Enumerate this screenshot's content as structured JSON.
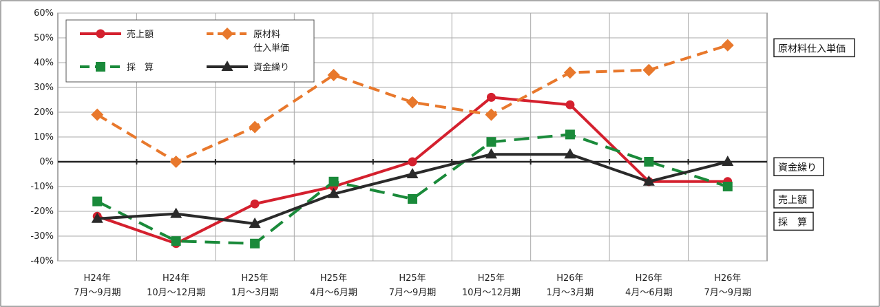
{
  "chart_data": {
    "type": "line",
    "categories": [
      [
        "H24年",
        "7月～9月期"
      ],
      [
        "H24年",
        "10月～12月期"
      ],
      [
        "H25年",
        "1月～3月期"
      ],
      [
        "H25年",
        "4月～6月期"
      ],
      [
        "H25年",
        "7月～9月期"
      ],
      [
        "H25年",
        "10月～12月期"
      ],
      [
        "H26年",
        "1月～3月期"
      ],
      [
        "H26年",
        "4月～6月期"
      ],
      [
        "H26年",
        "7月～9月期"
      ]
    ],
    "ylim": [
      -40,
      60
    ],
    "yticks": [
      60,
      50,
      40,
      30,
      20,
      10,
      0,
      -10,
      -20,
      -30,
      -40
    ],
    "ytick_suffix": "%",
    "grid": true,
    "series": [
      {
        "name": "売上額",
        "color": "#d4202e",
        "dash": "solid",
        "marker": "circle",
        "values": [
          -22,
          -33,
          -17,
          -10,
          0,
          26,
          23,
          -8,
          -8
        ]
      },
      {
        "name": "原材料\n仕入単価",
        "color": "#e8782c",
        "dash": "dashed",
        "marker": "diamond",
        "values": [
          19,
          0,
          14,
          35,
          24,
          19,
          36,
          37,
          47
        ]
      },
      {
        "name": "採　算",
        "color": "#1a8a3a",
        "dash": "longdash",
        "marker": "square",
        "values": [
          -16,
          -32,
          -33,
          -8,
          -15,
          8,
          11,
          0,
          -10
        ]
      },
      {
        "name": "資金繰り",
        "color": "#2a2a2a",
        "dash": "solid",
        "marker": "triangle",
        "values": [
          -23,
          -21,
          -25,
          -13,
          -5,
          3,
          3,
          -8,
          0
        ]
      }
    ],
    "side_labels": [
      {
        "text": "原材料仕入単価",
        "value": 46
      },
      {
        "text": "資金繰り",
        "value": -2
      },
      {
        "text": "売上額",
        "value": -15
      },
      {
        "text": "採　算",
        "value": -24
      }
    ]
  }
}
